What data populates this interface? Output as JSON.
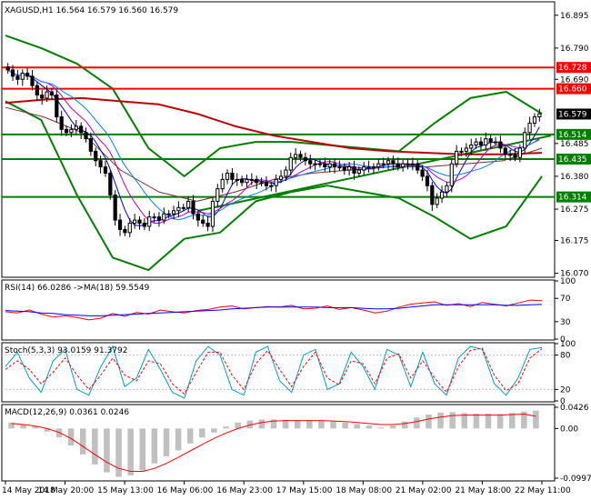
{
  "main": {
    "header": "XAGUSD,H1  16.564 16.579 16.560 16.579",
    "colors": {
      "candle_up": "#000000",
      "candle_up_fill": "#ffffff",
      "candle_down": "#000000",
      "grid": "#000000",
      "bollinger": "#007f00",
      "ma_slow": "#c00000",
      "ma_mid": "#7a2f2f",
      "ma_fast_a": "#0000c0",
      "ma_fast_b": "#c000c0",
      "ma_fast_c": "#0080ff",
      "level_red": "#ff0000",
      "level_green": "#007f00",
      "price_box": "#000000"
    }
  },
  "chart_data": [
    {
      "type": "candlestick",
      "title": "XAGUSD,H1",
      "ohlc_header": {
        "open": 16.564,
        "high": 16.579,
        "low": 16.56,
        "close": 16.579
      },
      "y_ticks": [
        "16.895",
        "16.790",
        "16.690",
        "16.485",
        "16.380",
        "16.275",
        "16.175",
        "16.070"
      ],
      "ylim": [
        16.06,
        16.935
      ],
      "x_ticks": [
        "14 May 2018",
        "14 May 20:00",
        "15 May 13:00",
        "16 May 06:00",
        "16 May 23:00",
        "17 May 15:00",
        "18 May 08:00",
        "21 May 02:00",
        "21 May 18:00",
        "22 May 11:00"
      ],
      "close": [
        16.72,
        16.7,
        16.69,
        16.71,
        16.7,
        16.67,
        16.64,
        16.63,
        16.65,
        16.64,
        16.57,
        16.53,
        16.52,
        16.53,
        16.54,
        16.52,
        16.5,
        16.46,
        16.43,
        16.41,
        16.39,
        16.32,
        16.24,
        16.21,
        16.2,
        16.23,
        16.24,
        16.23,
        16.22,
        16.25,
        16.25,
        16.24,
        16.26,
        16.26,
        16.27,
        16.28,
        16.28,
        16.3,
        16.26,
        16.24,
        16.23,
        16.22,
        16.3,
        16.34,
        16.37,
        16.39,
        16.37,
        16.37,
        16.36,
        16.37,
        16.37,
        16.36,
        16.36,
        16.35,
        16.35,
        16.37,
        16.38,
        16.4,
        16.44,
        16.45,
        16.44,
        16.43,
        16.42,
        16.42,
        16.42,
        16.41,
        16.42,
        16.41,
        16.41,
        16.4,
        16.41,
        16.39,
        16.4,
        16.41,
        16.41,
        16.41,
        16.42,
        16.42,
        16.43,
        16.42,
        16.41,
        16.42,
        16.42,
        16.42,
        16.4,
        16.38,
        16.35,
        16.29,
        16.31,
        16.33,
        16.35,
        16.42,
        16.46,
        16.46,
        16.47,
        16.48,
        16.49,
        16.48,
        16.5,
        16.49,
        16.49,
        16.47,
        16.45,
        16.45,
        16.44,
        16.47,
        16.52,
        16.55,
        16.57,
        16.58
      ],
      "moving_averages_approx": {
        "ma_slow_red": [
          16.615,
          16.625,
          16.63,
          16.62,
          16.61,
          16.58,
          16.54,
          16.51,
          16.49,
          16.47,
          16.46,
          16.455,
          16.45,
          16.45,
          16.455
        ],
        "ma_mid": [
          16.6,
          16.57,
          16.52,
          16.4,
          16.33,
          16.3,
          16.33,
          16.37,
          16.39,
          16.4,
          16.41,
          16.41,
          16.42,
          16.43,
          16.47
        ]
      },
      "bollinger_bands_approx": {
        "upper": [
          16.83,
          16.79,
          16.74,
          16.66,
          16.47,
          16.38,
          16.47,
          16.49,
          16.49,
          16.48,
          16.47,
          16.46,
          16.55,
          16.63,
          16.65,
          16.58
        ],
        "lower": [
          16.62,
          16.56,
          16.32,
          16.12,
          16.08,
          16.18,
          16.2,
          16.3,
          16.33,
          16.35,
          16.33,
          16.31,
          16.25,
          16.18,
          16.22,
          16.38
        ]
      },
      "levels": [
        {
          "value": 16.728,
          "label": "16.728",
          "color": "#ff0000"
        },
        {
          "value": 16.66,
          "label": "16.660",
          "color": "#ff0000"
        },
        {
          "value": 16.514,
          "label": "16.514",
          "color": "#007f00"
        },
        {
          "value": 16.435,
          "label": "16.435",
          "color": "#007f00"
        },
        {
          "value": 16.314,
          "label": "16.314",
          "color": "#007f00"
        }
      ],
      "trendline": {
        "from": [
          "16 May 06:00",
          16.27
        ],
        "to": [
          "22 May 11:00",
          16.51
        ]
      },
      "current_price": {
        "value": 16.579,
        "label": "16.579"
      },
      "grid": false
    },
    {
      "type": "line",
      "title": "RSI(14) 66.0286  ->MA(18) 59.5549",
      "y_ticks": [
        "100",
        "70",
        "30",
        "0"
      ],
      "ylim": [
        0,
        100
      ],
      "series": [
        {
          "name": "RSI(14)",
          "color": "#ff0000",
          "values": [
            47,
            45,
            50,
            43,
            38,
            40,
            37,
            33,
            36,
            44,
            39,
            46,
            43,
            50,
            47,
            45,
            49,
            51,
            55,
            57,
            52,
            54,
            56,
            55,
            58,
            52,
            53,
            57,
            51,
            54,
            50,
            45,
            48,
            55,
            60,
            62,
            64,
            58,
            61,
            56,
            63,
            60,
            57,
            62,
            67,
            66
          ]
        },
        {
          "name": "MA(18)",
          "color": "#0000ff",
          "values": [
            49,
            48,
            47,
            45,
            44,
            42,
            41,
            40,
            40,
            41,
            42,
            43,
            44,
            45,
            46,
            47,
            48,
            49,
            50,
            52,
            53,
            54,
            55,
            55,
            55,
            55,
            55,
            54,
            54,
            54,
            53,
            52,
            52,
            53,
            55,
            57,
            59,
            59,
            59,
            59,
            59,
            59,
            58,
            58,
            59,
            59.5
          ]
        }
      ]
    },
    {
      "type": "line",
      "title": "Stoch(5,3,3) 93.0159 91.3792",
      "y_ticks": [
        "100",
        "80",
        "20",
        "0"
      ],
      "ylim": [
        0,
        100
      ],
      "series": [
        {
          "name": "Stoch %K",
          "color": "#00a0c0",
          "values": [
            60,
            85,
            40,
            15,
            70,
            90,
            20,
            10,
            60,
            95,
            25,
            40,
            90,
            55,
            15,
            5,
            70,
            95,
            80,
            20,
            10,
            85,
            95,
            35,
            15,
            80,
            90,
            20,
            30,
            85,
            60,
            20,
            90,
            80,
            25,
            85,
            30,
            10,
            75,
            95,
            90,
            30,
            10,
            40,
            90,
            93
          ]
        },
        {
          "name": "Stoch %D",
          "color": "#ff0000",
          "values": [
            55,
            70,
            55,
            30,
            50,
            75,
            45,
            20,
            45,
            75,
            45,
            35,
            70,
            65,
            30,
            12,
            50,
            85,
            85,
            45,
            20,
            65,
            88,
            55,
            25,
            60,
            85,
            40,
            28,
            70,
            65,
            30,
            75,
            82,
            40,
            70,
            40,
            15,
            60,
            88,
            92,
            45,
            18,
            30,
            75,
            91
          ]
        }
      ]
    },
    {
      "type": "bar",
      "title": "MACD(12,26,9) 0.0361 0.0246",
      "y_ticks": [
        "0.0426",
        "0.00",
        "-0.0997"
      ],
      "ylim": [
        -0.0997,
        0.0426
      ],
      "series": [
        {
          "name": "MACD histogram",
          "color": "#c0c0c0",
          "values": [
            0.012,
            0.008,
            0.004,
            -0.006,
            -0.018,
            -0.034,
            -0.052,
            -0.072,
            -0.088,
            -0.097,
            -0.094,
            -0.084,
            -0.07,
            -0.056,
            -0.044,
            -0.03,
            -0.018,
            -0.008,
            0.004,
            0.012,
            0.016,
            0.018,
            0.018,
            0.017,
            0.016,
            0.016,
            0.015,
            0.014,
            0.012,
            0.009,
            0.006,
            0.002,
            0.006,
            0.014,
            0.022,
            0.028,
            0.032,
            0.033,
            0.031,
            0.03,
            0.03,
            0.029,
            0.031,
            0.034,
            0.036
          ]
        },
        {
          "name": "Signal",
          "color": "#ff0000",
          "values": [
            0.01,
            0.008,
            0.005,
            0.0,
            -0.008,
            -0.02,
            -0.036,
            -0.052,
            -0.068,
            -0.08,
            -0.086,
            -0.086,
            -0.08,
            -0.07,
            -0.058,
            -0.045,
            -0.032,
            -0.02,
            -0.009,
            0.0,
            0.007,
            0.012,
            0.015,
            0.016,
            0.016,
            0.016,
            0.016,
            0.015,
            0.014,
            0.012,
            0.01,
            0.008,
            0.008,
            0.01,
            0.014,
            0.019,
            0.023,
            0.026,
            0.027,
            0.027,
            0.027,
            0.027,
            0.028,
            0.029,
            0.0246
          ]
        }
      ]
    }
  ]
}
